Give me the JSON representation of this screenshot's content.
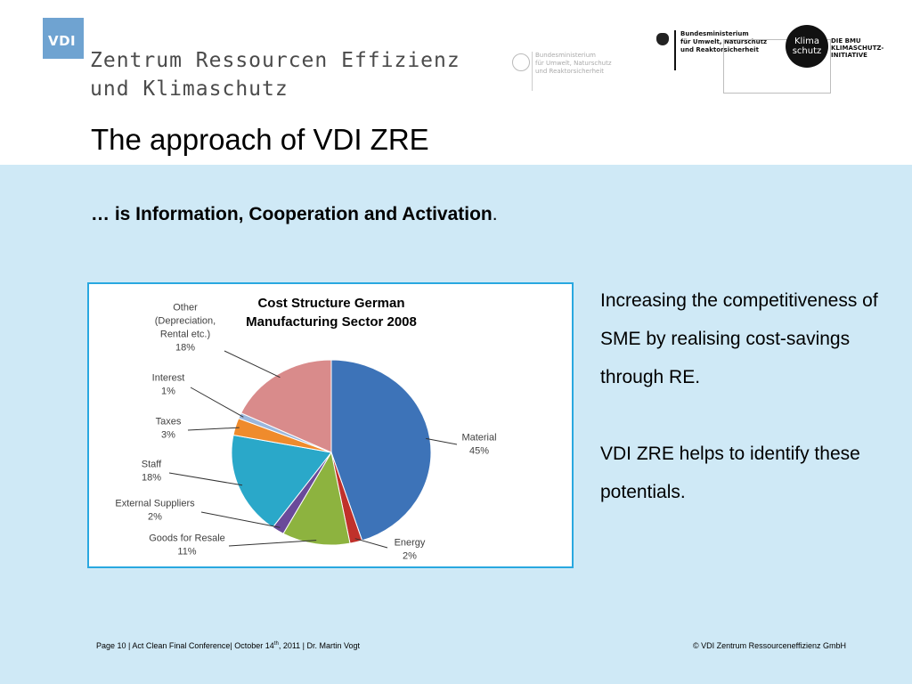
{
  "header": {
    "logo_text": "VDI",
    "org_name_line1": "Zentrum Ressourcen Effizienz",
    "org_name_line2": "und Klimaschutz",
    "ministry_grey_lines": [
      "Bundesministerium",
      "für Umwelt, Naturschutz",
      "und Reaktorsicherheit"
    ],
    "ministry_black_lines": [
      "Bundesministerium",
      "für Umwelt, Naturschutz",
      "und Reaktorsicherheit"
    ],
    "klima_badge_lines": [
      "Klima",
      "schutz"
    ],
    "klima_initiative_lines": [
      "DIE BMU",
      "KLIMASCHUTZ-",
      "INITIATIVE"
    ]
  },
  "slide": {
    "title": "The approach of VDI ZRE",
    "subtitle_bold": "… is Information, Cooperation and Activation",
    "subtitle_tail": ".",
    "paragraph1": "Increasing the competitiveness of SME by realising cost-savings through RE.",
    "paragraph2": "VDI ZRE helps to identify these potentials."
  },
  "footer": {
    "left_before_sup": "Page 10  | Act Clean Final Conference| October 14",
    "left_sup": "th",
    "left_after_sup": ", 2011 | Dr. Martin Vogt",
    "right": "© VDI Zentrum Ressourceneffizienz GmbH"
  },
  "chart_data": {
    "type": "pie",
    "title_lines": [
      "Cost Structure German",
      "Manufacturing Sector 2008"
    ],
    "slices": [
      {
        "label_lines": [
          "Material",
          "45%"
        ],
        "value": 45,
        "color": "#3d73b8"
      },
      {
        "label_lines": [
          "Energy",
          "2%"
        ],
        "value": 2,
        "color": "#c0312b"
      },
      {
        "label_lines": [
          "Goods for Resale",
          "11%"
        ],
        "value": 11,
        "color": "#8db33f"
      },
      {
        "label_lines": [
          "External Suppliers",
          "2%"
        ],
        "value": 2,
        "color": "#6a4a9a"
      },
      {
        "label_lines": [
          "Staff",
          "18%"
        ],
        "value": 18,
        "color": "#2aa8c9"
      },
      {
        "label_lines": [
          "Taxes",
          "3%"
        ],
        "value": 3,
        "color": "#ef8b2c"
      },
      {
        "label_lines": [
          "Interest",
          "1%"
        ],
        "value": 1,
        "color": "#9ab7dd"
      },
      {
        "label_lines": [
          "Other",
          "(Depreciation,",
          "Rental etc.)",
          "18%"
        ],
        "value": 18,
        "color": "#d98b8b"
      }
    ]
  }
}
